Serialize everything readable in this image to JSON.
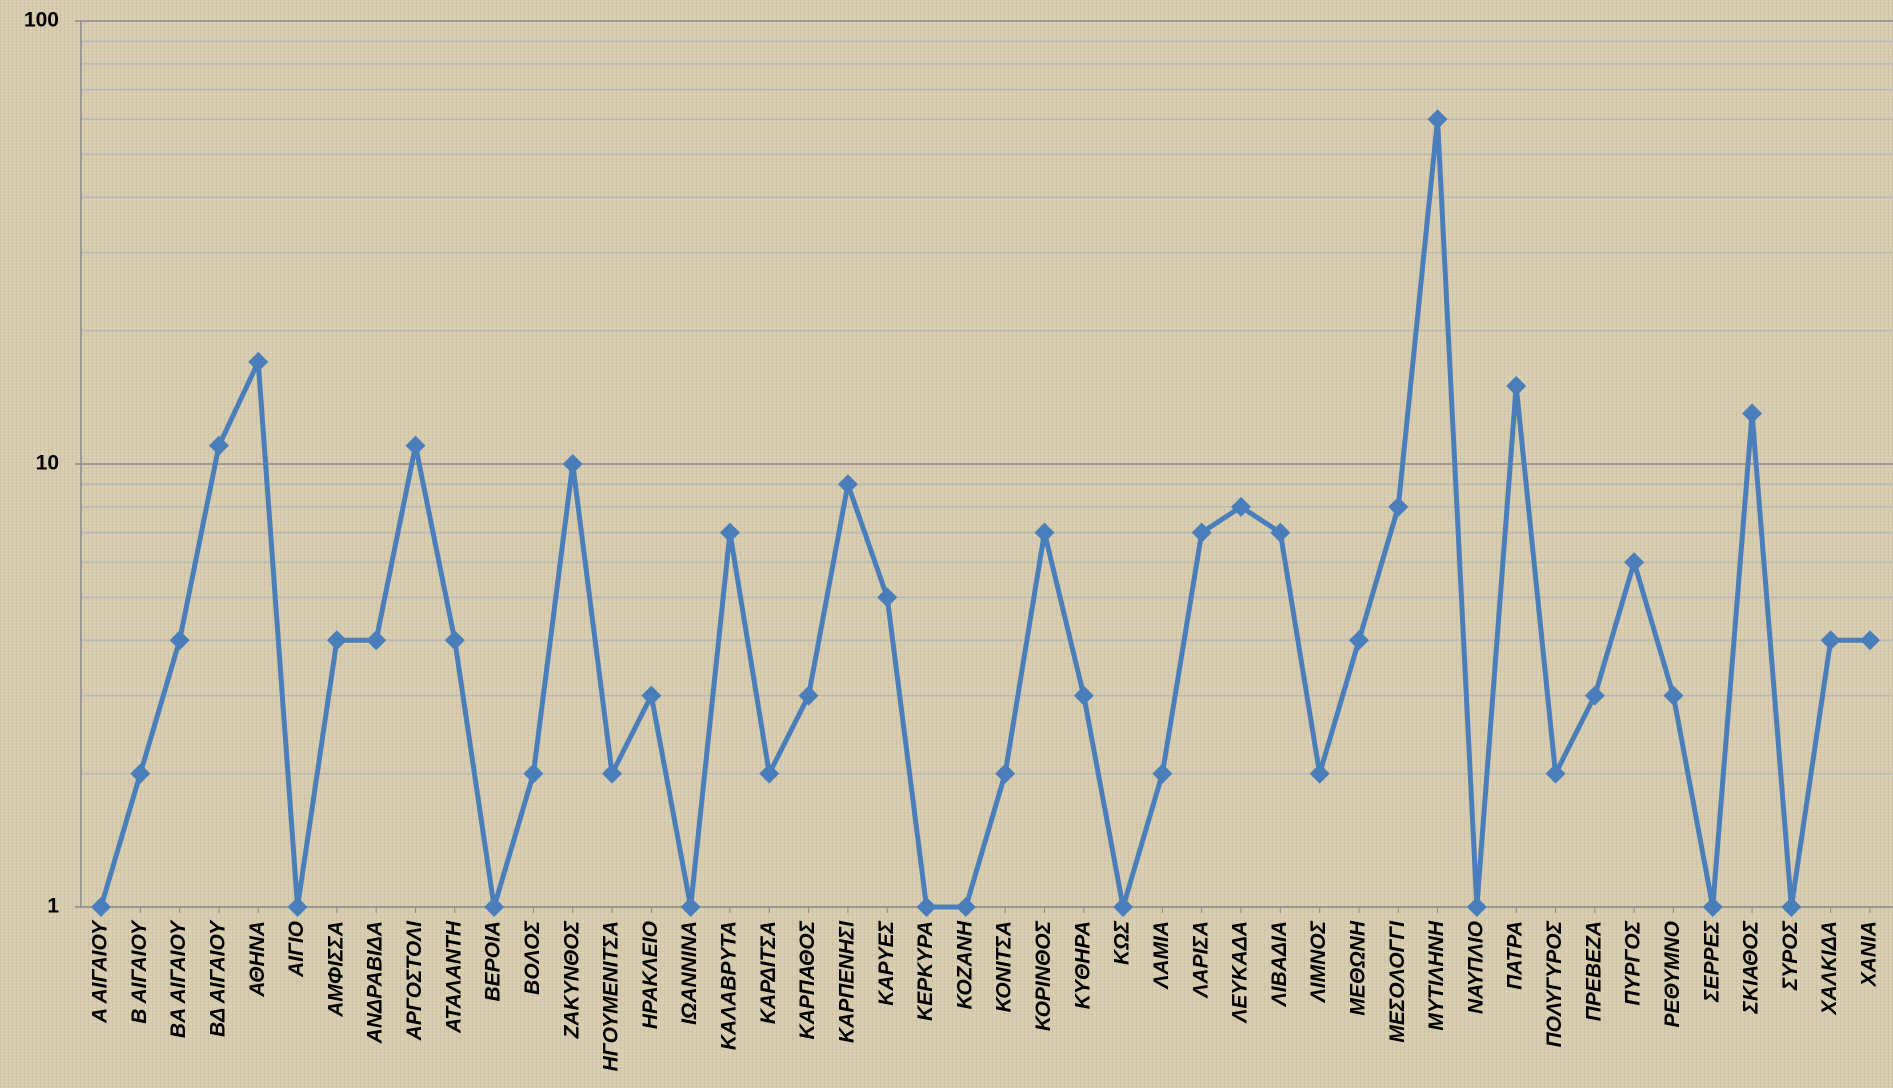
{
  "chart_data": {
    "type": "line",
    "categories": [
      "Α ΑΙΓΑΙΟΥ",
      "Β ΑΙΓΑΙΟΥ",
      "ΒΑ ΑΙΓΑΙΟΥ",
      "ΒΔ ΑΙΓΑΙΟΥ",
      "ΑΘΗΝΑ",
      "ΑΙΓΙΟ",
      "ΑΜΦΙΣΣΑ",
      "ΑΝΔΡΑΒΙΔΑ",
      "ΑΡΓΟΣΤΟΛΙ",
      "ΑΤΑΛΑΝΤΗ",
      "ΒΕΡΟΙΑ",
      "ΒΟΛΟΣ",
      "ΖΑΚΥΝΘΟΣ",
      "ΗΓΟΥΜΕΝΙΤΣΑ",
      "ΗΡΑΚΛΕΙΟ",
      "ΙΩΑΝΝΙΝΑ",
      "ΚΑΛΑΒΡΥΤΑ",
      "ΚΑΡΔΙΤΣΑ",
      "ΚΑΡΠΑΘΟΣ",
      "ΚΑΡΠΕΝΗΣΙ",
      "ΚΑΡΥΕΣ",
      "ΚΕΡΚΥΡΑ",
      "ΚΟΖΑΝΗ",
      "ΚΟΝΙΤΣΑ",
      "ΚΟΡΙΝΘΟΣ",
      "ΚΥΘΗΡΑ",
      "ΚΩΣ",
      "ΛΑΜΙΑ",
      "ΛΑΡΙΣΑ",
      "ΛΕΥΚΑΔΑ",
      "ΛΙΒΑΔΙΑ",
      "ΛΙΜΝΟΣ",
      "ΜΕΘΩΝΗ",
      "ΜΕΣΟΛΟΓΓΙ",
      "ΜΥΤΙΛΗΝΗ",
      "ΝΑΥΠΛΙΟ",
      "ΠΑΤΡΑ",
      "ΠΟΛΥΓΥΡΟΣ",
      "ΠΡΕΒΕΖΑ",
      "ΠΥΡΓΟΣ",
      "ΡΕΘΥΜΝΟ",
      "ΣΕΡΡΕΣ",
      "ΣΚΙΑΘΟΣ",
      "ΣΥΡΟΣ",
      "ΧΑΛΚΙΔΑ",
      "ΧΑΝΙΑ"
    ],
    "values": [
      1,
      2,
      4,
      11,
      17,
      1,
      4,
      4,
      11,
      4,
      1,
      2,
      10,
      2,
      3,
      1,
      7,
      2,
      3,
      9,
      5,
      1,
      1,
      2,
      7,
      3,
      1,
      2,
      7,
      8,
      7,
      2,
      4,
      8,
      60,
      1,
      15,
      2,
      3,
      6,
      3,
      1,
      13,
      1,
      4,
      4
    ],
    "color": "#4a7ebb",
    "log_scale": true,
    "ylim": [
      1,
      100
    ],
    "yticks": [
      1,
      10,
      100
    ],
    "grid": true,
    "minor_grid": true
  }
}
